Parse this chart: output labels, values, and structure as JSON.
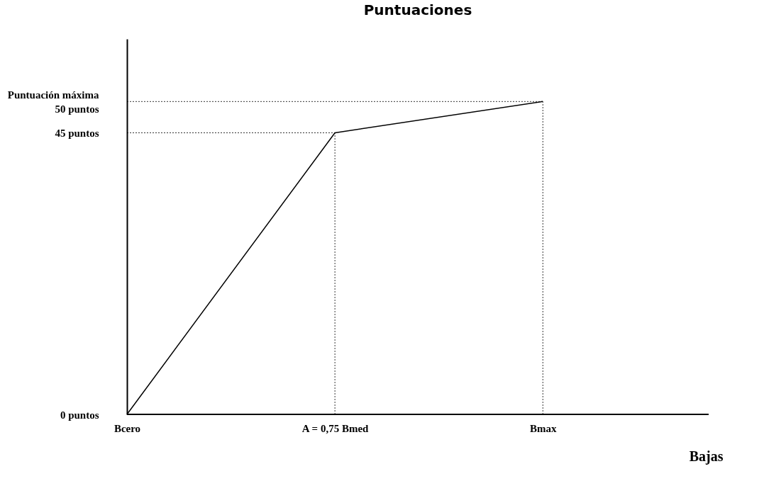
{
  "chart_data": {
    "type": "line",
    "title": "Puntuaciones",
    "xlabel": "Bajas",
    "categories": [
      "Bcero",
      "A = 0,75 Bmed",
      "Bmax"
    ],
    "series": [
      {
        "color": "#000000",
        "values": [
          0,
          45,
          50
        ]
      }
    ],
    "ylim": [
      0,
      60
    ],
    "yticks": [
      {
        "value": 0,
        "label": "0 puntos"
      },
      {
        "value": 45,
        "label": "45 puntos"
      },
      {
        "value": 50,
        "label": "Puntuación máxima 50 puntos"
      }
    ],
    "ref_lines": [
      {
        "axis": "y",
        "value": 45,
        "line_style": "dotted",
        "color": "#000000"
      },
      {
        "axis": "y",
        "value": 50,
        "line_style": "dotted",
        "color": "#000000"
      },
      {
        "axis": "x",
        "value": "A = 0,75 Bmed",
        "line_style": "dotted",
        "color": "#000000"
      },
      {
        "axis": "x",
        "value": "Bmax",
        "line_style": "dotted",
        "color": "#000000"
      }
    ],
    "grid": false,
    "marker": "none",
    "line_style": "solid"
  }
}
